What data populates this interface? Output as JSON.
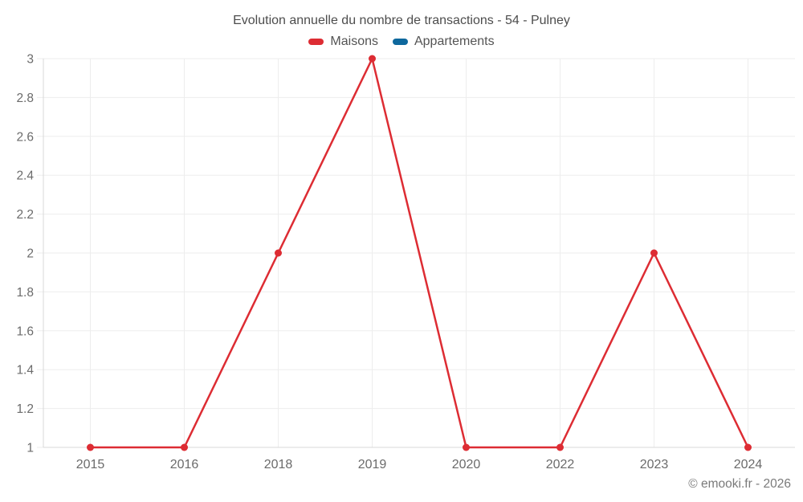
{
  "page": {
    "title": "Evolution annuelle du nombre de transactions - 54 - Pulney",
    "footer": "© emooki.fr - 2026"
  },
  "colors": {
    "maisons": "#dd2c33",
    "appartements": "#0e689d",
    "grid": "#ededed",
    "axis": "#d8d8d8",
    "title_text": "#4d4d4d",
    "tick_text": "#6b6b6b",
    "legend_text": "#545454",
    "footer_text": "#7a7a7a",
    "background": "#ffffff"
  },
  "chart_data": {
    "type": "line",
    "title": "Evolution annuelle du nombre de transactions - 54 - Pulney",
    "categories": [
      "2015",
      "2016",
      "2018",
      "2019",
      "2020",
      "2022",
      "2023",
      "2024"
    ],
    "series": [
      {
        "name": "Maisons",
        "color": "#dd2c33",
        "values": [
          1,
          1,
          2,
          3,
          1,
          1,
          2,
          1
        ]
      },
      {
        "name": "Appartements",
        "color": "#0e689d",
        "values": []
      }
    ],
    "xlabel": "",
    "ylabel": "",
    "ylim": [
      1,
      3
    ],
    "yticks": [
      "1",
      "1.2",
      "1.4",
      "1.6",
      "1.8",
      "2",
      "2.2",
      "2.4",
      "2.6",
      "2.8",
      "3"
    ],
    "grid": true,
    "legend_position": "top",
    "marker": "circle",
    "marker_radius": 4.5,
    "line_width": 2.5
  }
}
